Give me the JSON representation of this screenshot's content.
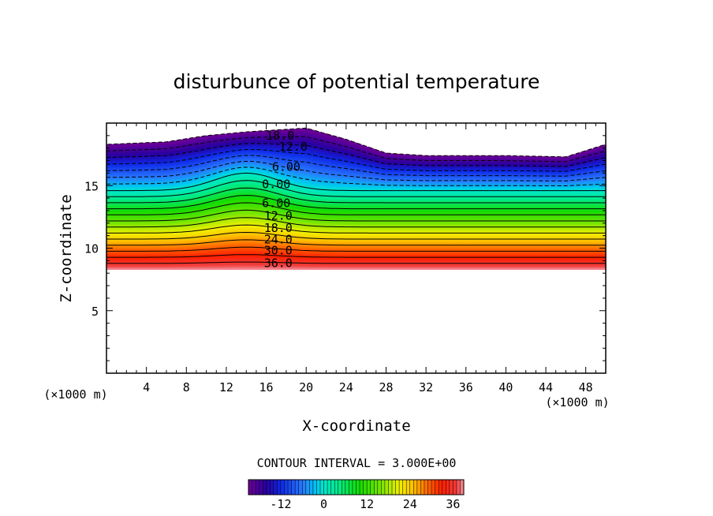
{
  "chart_data": {
    "type": "heatmap",
    "title": "disturbunce of potential temperature",
    "xlabel": "X-coordinate",
    "ylabel": "Z-coordinate",
    "x_unit": "(×1000 m)",
    "y_unit": "(×1000 m)",
    "xlim": [
      0,
      50
    ],
    "ylim": [
      0,
      20
    ],
    "x_ticks": [
      4,
      8,
      12,
      16,
      20,
      24,
      28,
      32,
      36,
      40,
      44,
      48
    ],
    "y_ticks": [
      5,
      10,
      15
    ],
    "contour_interval_text": "CONTOUR INTERVAL = 3.000E+00",
    "contour_labels": [
      {
        "text": "18.0",
        "x": 17.4,
        "z": 19.0
      },
      {
        "text": "12.0",
        "x": 18.7,
        "z": 18.1
      },
      {
        "text": "6.00",
        "x": 18.0,
        "z": 16.5
      },
      {
        "text": "0.00",
        "x": 17.0,
        "z": 15.1
      },
      {
        "text": "6.00",
        "x": 17.0,
        "z": 13.6
      },
      {
        "text": "12.0",
        "x": 17.2,
        "z": 12.6
      },
      {
        "text": "18.0",
        "x": 17.2,
        "z": 11.6
      },
      {
        "text": "24.0",
        "x": 17.2,
        "z": 10.7
      },
      {
        "text": "30.0",
        "x": 17.2,
        "z": 9.8
      },
      {
        "text": "36.0",
        "x": 17.2,
        "z": 8.8
      }
    ],
    "colorbar": {
      "range": [
        -21,
        39
      ],
      "tick_labels": [
        "-12",
        "0",
        "12",
        "24",
        "36"
      ],
      "tick_values": [
        -12,
        0,
        12,
        24,
        36
      ]
    },
    "field_description_values": {
      "bottom_of_field_z": 8.3,
      "top_of_field_z_profile": [
        {
          "x": 0,
          "z": 18.3
        },
        {
          "x": 6,
          "z": 18.5
        },
        {
          "x": 10,
          "z": 19.0
        },
        {
          "x": 14,
          "z": 19.3
        },
        {
          "x": 20,
          "z": 19.6
        },
        {
          "x": 24,
          "z": 18.7
        },
        {
          "x": 28,
          "z": 17.6
        },
        {
          "x": 32,
          "z": 17.4
        },
        {
          "x": 36,
          "z": 17.4
        },
        {
          "x": 40,
          "z": 17.4
        },
        {
          "x": 46,
          "z": 17.3
        },
        {
          "x": 50,
          "z": 18.3
        }
      ]
    }
  },
  "colors": {
    "background": "#ffffff",
    "axis": "#000000"
  }
}
